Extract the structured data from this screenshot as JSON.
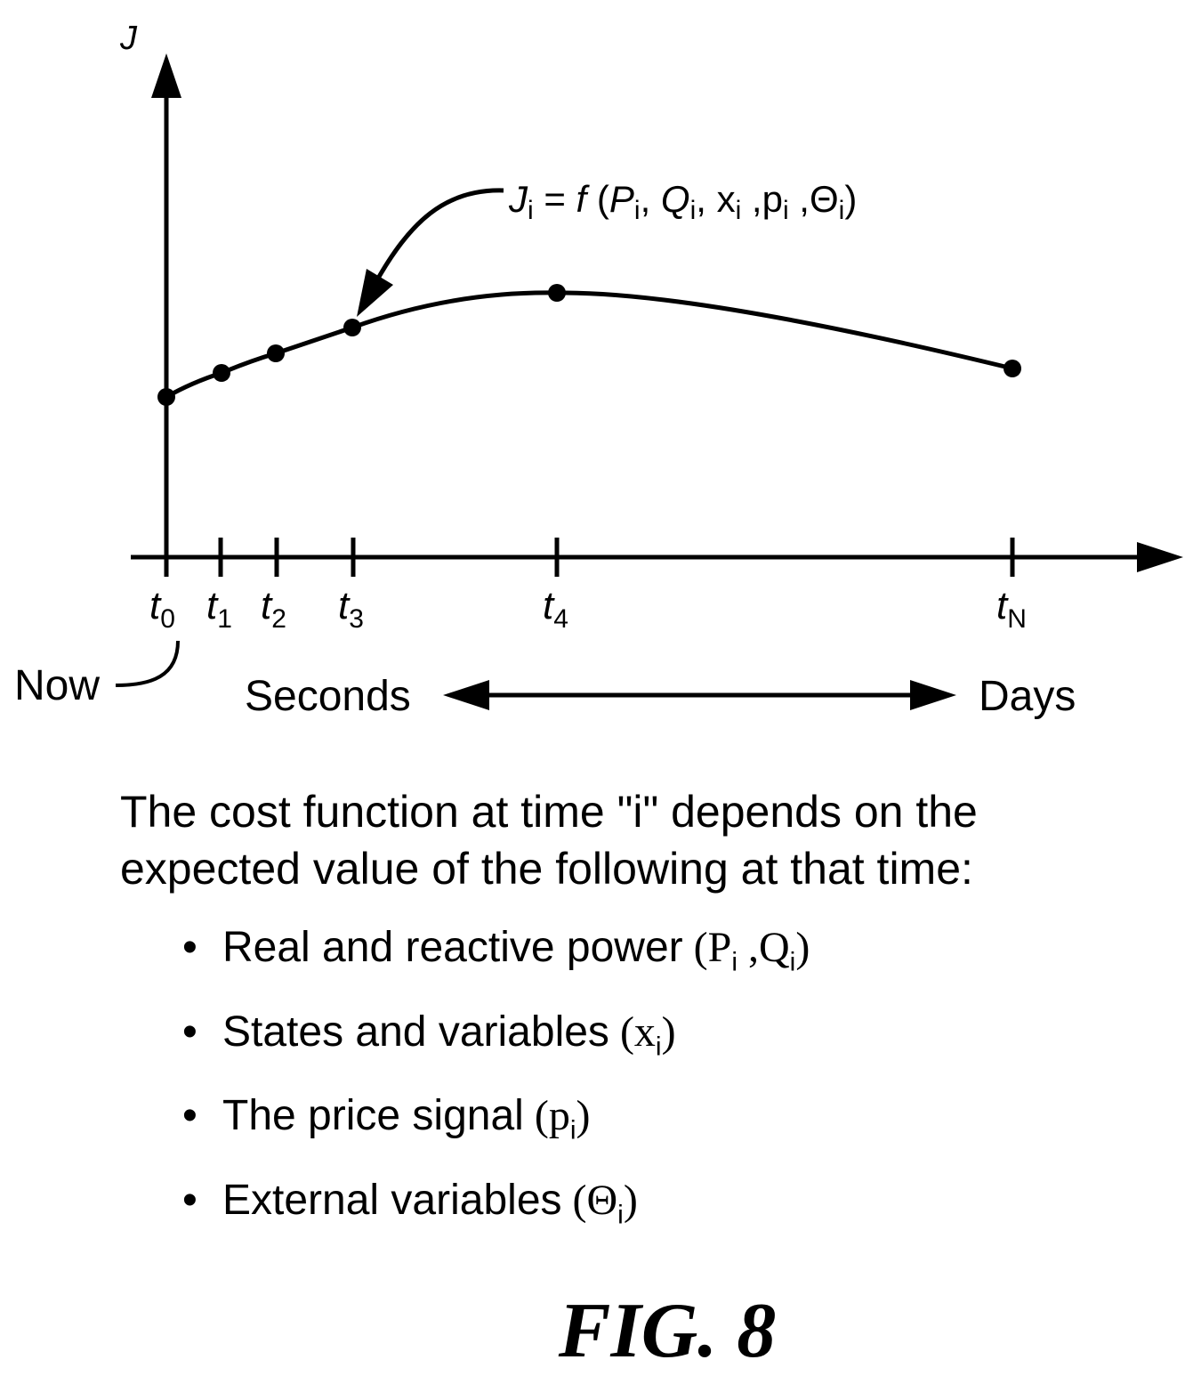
{
  "figure": {
    "y_axis_label": "J",
    "formula": {
      "lhs_base": "J",
      "lhs_sub": "i",
      "eq": " = ",
      "func": "f",
      "open": " (",
      "args": [
        {
          "base": "P",
          "sub": "i",
          "italic": true
        },
        {
          "base": "Q",
          "sub": "i",
          "italic": true
        },
        {
          "base": "x",
          "sub": "i",
          "italic": false
        },
        {
          "base": "p",
          "sub": "i",
          "italic": false
        },
        {
          "base": "Θ",
          "sub": "i",
          "italic": false
        }
      ],
      "close": ")"
    },
    "ticks": [
      {
        "base": "t",
        "sub": "0"
      },
      {
        "base": "t",
        "sub": "1"
      },
      {
        "base": "t",
        "sub": "2"
      },
      {
        "base": "t",
        "sub": "3"
      },
      {
        "base": "t",
        "sub": "4"
      },
      {
        "base": "t",
        "sub": "N"
      }
    ],
    "now_label": "Now",
    "range_left": "Seconds",
    "range_right": "Days"
  },
  "description": {
    "text_line1": "The cost function at time \"i\" depends on the",
    "text_line2": "expected value of the following at that time:",
    "bullets": [
      {
        "text": "Real and reactive power",
        "symbol": "(P",
        "symbol_sub": "i",
        "symbol_rest": " ,Q",
        "symbol_sub2": "i",
        "symbol_end": ")"
      },
      {
        "text": "States and variables",
        "symbol": "(x",
        "symbol_sub": "i",
        "symbol_rest": "",
        "symbol_sub2": "",
        "symbol_end": ")"
      },
      {
        "text": "The price signal",
        "symbol": "(p",
        "symbol_sub": "i",
        "symbol_rest": "",
        "symbol_sub2": "",
        "symbol_end": ")"
      },
      {
        "text": "External variables",
        "symbol": "(Θ",
        "symbol_sub": "i",
        "symbol_rest": "",
        "symbol_sub2": "",
        "symbol_end": ")"
      }
    ]
  },
  "fig_label": "FIG. 8"
}
